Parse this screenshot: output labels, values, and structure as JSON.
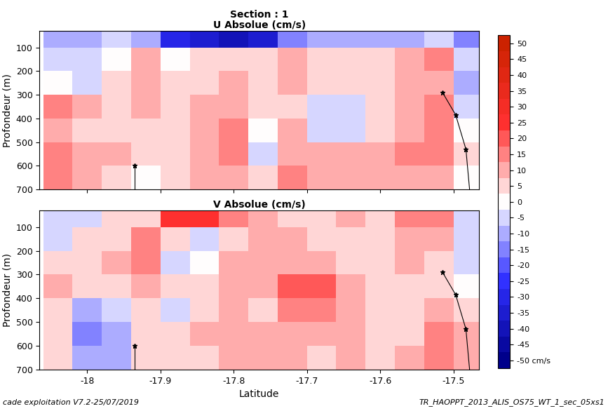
{
  "chart_data": {
    "type": "heatmap",
    "title": "Section : 1",
    "footer_left": "cade exploitation V7.2-25/07/2019",
    "footer_right": "TR_HAOPPT_2013_ALIS_OS75_WT_1_sec_05xs1",
    "x_label": "Latitude",
    "y_label": "Profondeur (m)",
    "xlim": [
      -18.065,
      -17.465
    ],
    "xticks": [
      -18,
      -17.9,
      -17.8,
      -17.7,
      -17.6,
      -17.5
    ],
    "ylim": [
      700,
      30
    ],
    "yticks": [
      100,
      200,
      300,
      400,
      500,
      600,
      700
    ],
    "x_edges": [
      -18.06,
      -18.02,
      -17.98,
      -17.94,
      -17.9,
      -17.86,
      -17.82,
      -17.78,
      -17.74,
      -17.7,
      -17.66,
      -17.62,
      -17.58,
      -17.54,
      -17.5,
      -17.46
    ],
    "depth_edges": [
      30,
      100,
      200,
      300,
      400,
      500,
      600,
      700
    ],
    "colorbar": {
      "range": [
        -52.5,
        52.5
      ],
      "ticks": [
        {
          "value": -50,
          "label": "-50 cm/s"
        },
        -45,
        -40,
        -35,
        -30,
        -25,
        -20,
        -15,
        -10,
        -5,
        0,
        5,
        10,
        15,
        20,
        25,
        30,
        35,
        40,
        45,
        50
      ]
    },
    "bathymetry": [
      {
        "x": [
          -17.515,
          -17.497,
          -17.483,
          -17.478
        ],
        "y": [
          290,
          385,
          530,
          700
        ]
      },
      {
        "x": [
          -17.935,
          -17.935
        ],
        "y": [
          600,
          700
        ]
      }
    ],
    "marker": "*",
    "panels": [
      {
        "title": "U Absolue (cm/s)",
        "cells": [
          [
            -10,
            -8,
            -5,
            -10,
            -30,
            -35,
            -40,
            -35,
            -15,
            -10,
            -10,
            -10,
            -8,
            -5,
            -15
          ],
          [
            -5,
            -5,
            0,
            10,
            0,
            3,
            3,
            5,
            8,
            5,
            5,
            3,
            10,
            15,
            -5
          ],
          [
            0,
            -5,
            3,
            10,
            5,
            5,
            10,
            3,
            8,
            5,
            3,
            3,
            10,
            10,
            -8
          ],
          [
            15,
            10,
            3,
            8,
            3,
            10,
            10,
            5,
            5,
            -3,
            -3,
            5,
            10,
            15,
            -5
          ],
          [
            10,
            5,
            5,
            3,
            3,
            10,
            15,
            0,
            10,
            -5,
            -5,
            5,
            12,
            15,
            0
          ],
          [
            15,
            10,
            8,
            5,
            5,
            10,
            15,
            -3,
            12,
            8,
            10,
            10,
            15,
            15,
            5
          ],
          [
            15,
            10,
            5,
            0,
            5,
            10,
            10,
            3,
            15,
            10,
            10,
            10,
            10,
            10,
            0
          ]
        ]
      },
      {
        "title": "V Absolue (cm/s)",
        "cells": [
          [
            -5,
            -5,
            5,
            5,
            25,
            25,
            15,
            10,
            5,
            5,
            10,
            5,
            15,
            15,
            -5
          ],
          [
            -5,
            5,
            5,
            15,
            5,
            -5,
            5,
            10,
            8,
            5,
            5,
            5,
            10,
            10,
            -5
          ],
          [
            3,
            5,
            10,
            15,
            -3,
            0,
            8,
            10,
            10,
            10,
            5,
            5,
            10,
            5,
            -5
          ],
          [
            8,
            5,
            3,
            10,
            5,
            5,
            10,
            10,
            18,
            18,
            10,
            5,
            5,
            5,
            0
          ],
          [
            3,
            -10,
            -5,
            5,
            -3,
            5,
            10,
            5,
            15,
            15,
            10,
            5,
            5,
            10,
            5
          ],
          [
            3,
            -15,
            -10,
            3,
            5,
            8,
            10,
            10,
            10,
            10,
            10,
            5,
            5,
            15,
            10
          ],
          [
            5,
            -10,
            -8,
            5,
            3,
            5,
            8,
            10,
            10,
            5,
            10,
            5,
            10,
            15,
            10
          ]
        ]
      }
    ]
  }
}
